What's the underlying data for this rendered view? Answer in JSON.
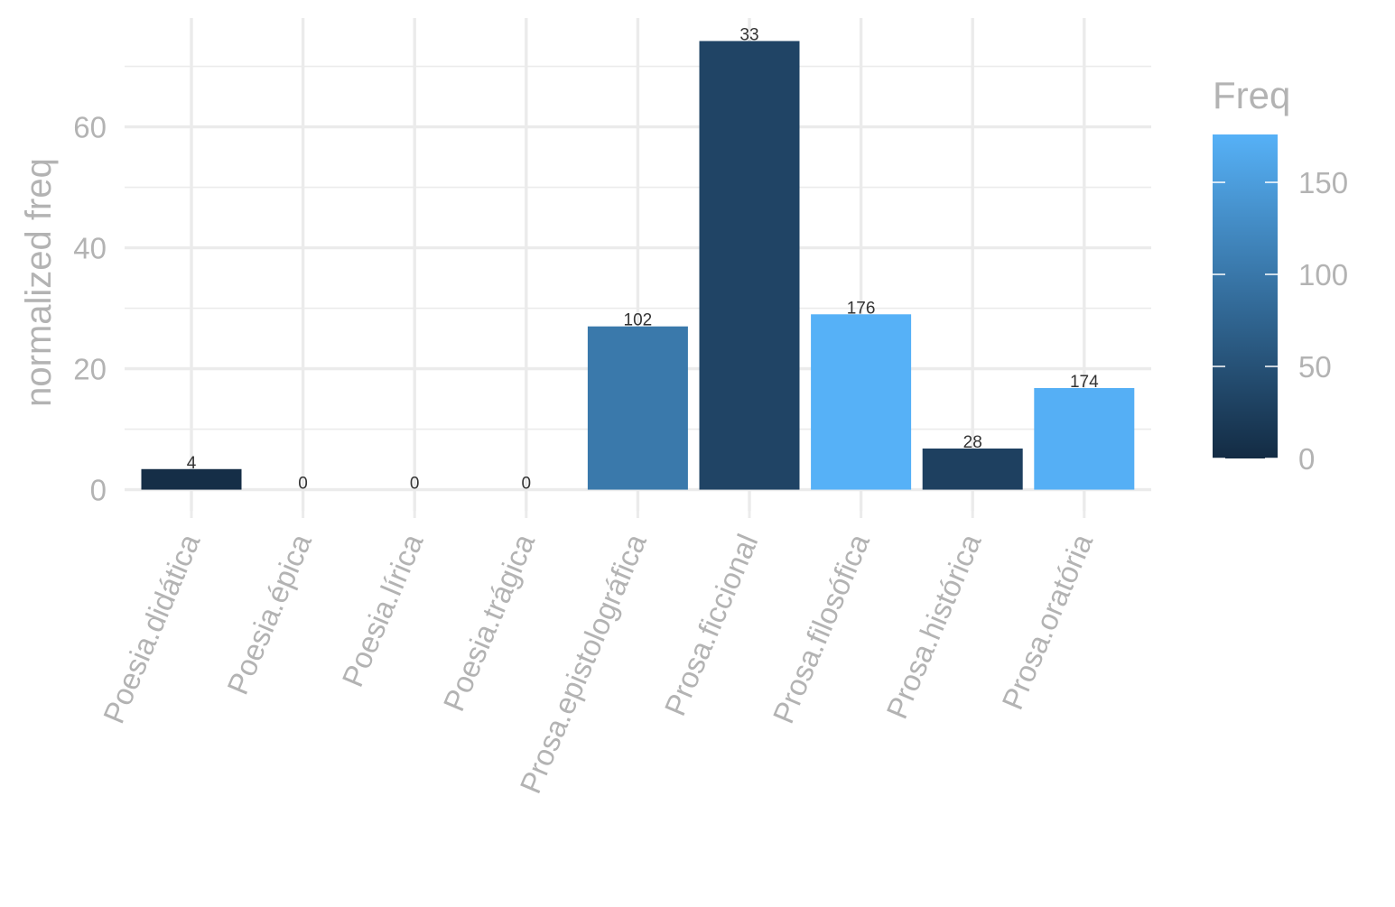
{
  "chart_data": {
    "type": "bar",
    "title": "",
    "xlabel": "",
    "ylabel": "normalized freq",
    "ylim": [
      -3.5,
      78
    ],
    "y_ticks": [
      0,
      20,
      40,
      60
    ],
    "grid": true,
    "categories": [
      "Poesia.didática",
      "Poesia.épica",
      "Poesia.lírica",
      "Poesia.trágica",
      "Prosa.epistolográfica",
      "Prosa.ficcional",
      "Prosa.filosófica",
      "Prosa.histórica",
      "Prosa.oratória"
    ],
    "values": [
      3.4,
      0,
      0,
      0,
      27,
      74.2,
      29,
      6.8,
      16.8
    ],
    "bar_labels": [
      "4",
      "0",
      "0",
      "0",
      "102",
      "33",
      "176",
      "28",
      "174"
    ],
    "fill_values": [
      4,
      0,
      0,
      0,
      102,
      33,
      176,
      28,
      174
    ],
    "legend": {
      "title": "Freq",
      "placement": "right",
      "range": [
        0,
        176
      ],
      "ticks": [
        0,
        50,
        100,
        150
      ],
      "tick_labels": [
        "0",
        "50",
        "100",
        "150"
      ],
      "color_low": "#132B43",
      "color_high": "#56B1F7"
    }
  }
}
